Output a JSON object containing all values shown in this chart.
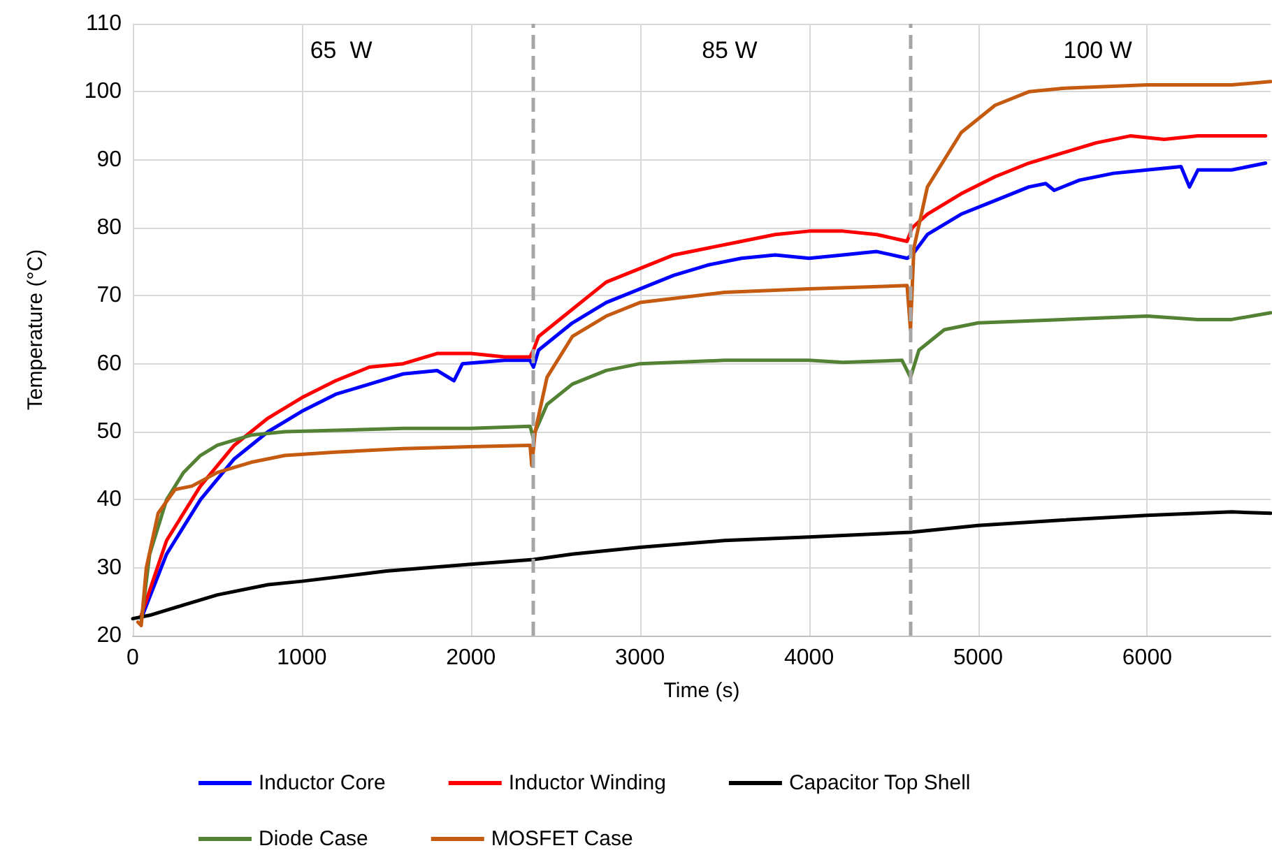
{
  "chart_data": {
    "type": "line",
    "xlabel": "Time (s)",
    "ylabel": "Temperature (°C)",
    "xlim": [
      0,
      6730
    ],
    "xticks": [
      0,
      1000,
      2000,
      3000,
      4000,
      5000,
      6000
    ],
    "ylim": [
      20,
      110
    ],
    "yticks": [
      20,
      30,
      40,
      50,
      60,
      70,
      80,
      90,
      100,
      110
    ],
    "grid": true,
    "legend": "bottom",
    "marker": "none",
    "line_style": "solid",
    "ref_lines": [
      {
        "axis": "x",
        "value": 2370,
        "label": null,
        "color": "#a6a6a6",
        "line_style": "dashed"
      },
      {
        "axis": "x",
        "value": 4600,
        "label": null,
        "color": "#a6a6a6",
        "line_style": "dashed"
      }
    ],
    "annotations": [
      "65  W",
      "85 W",
      "100 W"
    ],
    "series": [
      {
        "name": "Inductor Core",
        "color": "#0000ff",
        "x": [
          50,
          200,
          400,
          600,
          800,
          1000,
          1200,
          1400,
          1600,
          1800,
          1900,
          1950,
          2200,
          2350,
          2370,
          2400,
          2600,
          2800,
          3000,
          3200,
          3400,
          3600,
          3800,
          4000,
          4200,
          4400,
          4580,
          4610,
          4700,
          4900,
          5100,
          5300,
          5400,
          5450,
          5600,
          5800,
          6000,
          6200,
          6250,
          6300,
          6500,
          6700
        ],
        "values": [
          22.5,
          32,
          40,
          46,
          50,
          53,
          55.5,
          57,
          58.5,
          59,
          57.5,
          60,
          60.5,
          60.5,
          59.5,
          62,
          66,
          69,
          71,
          73,
          74.5,
          75.5,
          76,
          75.5,
          76,
          76.5,
          75.5,
          76,
          79,
          82,
          84,
          86,
          86.5,
          85.5,
          87,
          88,
          88.5,
          89,
          86,
          88.5,
          88.5,
          89.5
        ]
      },
      {
        "name": "Inductor Winding",
        "color": "#ff0000",
        "x": [
          50,
          200,
          400,
          600,
          800,
          1000,
          1200,
          1400,
          1600,
          1800,
          2000,
          2200,
          2350,
          2370,
          2400,
          2600,
          2800,
          3000,
          3200,
          3400,
          3600,
          3800,
          4000,
          4200,
          4400,
          4580,
          4610,
          4700,
          4900,
          5100,
          5300,
          5500,
          5700,
          5900,
          6100,
          6300,
          6500,
          6700
        ],
        "values": [
          23,
          34,
          42,
          48,
          52,
          55,
          57.5,
          59.5,
          60,
          61.5,
          61.5,
          61,
          61,
          62,
          64,
          68,
          72,
          74,
          76,
          77,
          78,
          79,
          79.5,
          79.5,
          79,
          78,
          80,
          82,
          85,
          87.5,
          89.5,
          91,
          92.5,
          93.5,
          93,
          93.5,
          93.5,
          93.5
        ]
      },
      {
        "name": "Capacitor Top Shell",
        "color": "#000000",
        "x": [
          0,
          100,
          300,
          500,
          800,
          1000,
          1500,
          2000,
          2370,
          2600,
          3000,
          3500,
          4000,
          4600,
          5000,
          5500,
          6000,
          6500,
          6730
        ],
        "values": [
          22.5,
          23,
          24.5,
          26,
          27.5,
          28,
          29.5,
          30.5,
          31.2,
          32,
          33,
          34,
          34.5,
          35.2,
          36.2,
          37,
          37.7,
          38.2,
          38
        ]
      },
      {
        "name": "Diode Case",
        "color": "#548235",
        "x": [
          50,
          100,
          200,
          300,
          400,
          500,
          700,
          900,
          1200,
          1600,
          2000,
          2350,
          2370,
          2380,
          2450,
          2600,
          2800,
          3000,
          3500,
          4000,
          4200,
          4550,
          4600,
          4650,
          4800,
          5000,
          5500,
          6000,
          6300,
          6500,
          6730
        ],
        "values": [
          22,
          32,
          40,
          44,
          46.5,
          48,
          49.5,
          50,
          50.2,
          50.5,
          50.5,
          50.8,
          49,
          50,
          54,
          57,
          59,
          60,
          60.5,
          60.5,
          60.2,
          60.5,
          58,
          62,
          65,
          66,
          66.5,
          67,
          66.5,
          66.5,
          67.5
        ]
      },
      {
        "name": "MOSFET Case",
        "color": "#c55a11",
        "x": [
          30,
          50,
          80,
          150,
          250,
          350,
          500,
          700,
          900,
          1200,
          1600,
          2000,
          2350,
          2360,
          2380,
          2450,
          2600,
          2800,
          3000,
          3500,
          4000,
          4580,
          4600,
          4620,
          4700,
          4900,
          5100,
          5300,
          5500,
          6000,
          6500,
          6730
        ],
        "values": [
          22,
          21.5,
          30,
          38,
          41.5,
          42,
          44,
          45.5,
          46.5,
          47,
          47.5,
          47.8,
          48,
          45,
          50,
          58,
          64,
          67,
          69,
          70.5,
          71,
          71.5,
          65,
          77,
          86,
          94,
          98,
          100,
          100.5,
          101,
          101,
          101.5
        ]
      }
    ]
  }
}
